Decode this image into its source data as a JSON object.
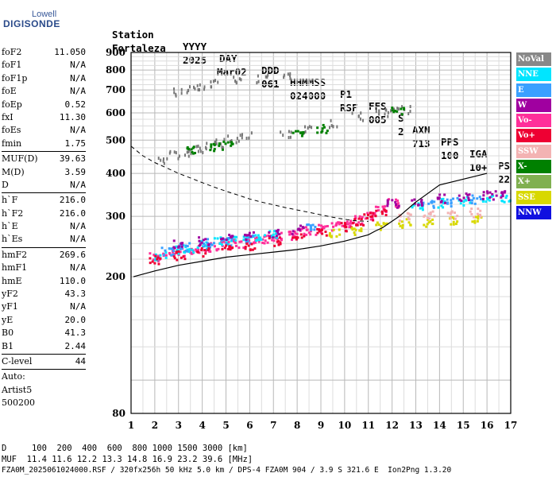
{
  "logo": {
    "line1": "Lowell",
    "line2": "DIGISONDE"
  },
  "header": {
    "labels": [
      "Station",
      "YYYY",
      "DAY",
      "DDD",
      "HHMMSS",
      "P1",
      "FFS",
      "S",
      "AXN",
      "PPS",
      "IGA",
      "PS"
    ],
    "values": [
      "Fortaleza",
      "2025",
      "Mar02",
      "061",
      "024000",
      "RSF",
      "005",
      "2",
      "713",
      "100",
      "10+",
      "22"
    ]
  },
  "params": {
    "group1": [
      {
        "k": "foF2",
        "v": "11.050"
      },
      {
        "k": "foF1",
        "v": "N/A"
      },
      {
        "k": "foF1p",
        "v": "N/A"
      },
      {
        "k": "foE",
        "v": "N/A"
      },
      {
        "k": "foEp",
        "v": "0.52"
      },
      {
        "k": "fxI",
        "v": "11.30"
      },
      {
        "k": "foEs",
        "v": "N/A"
      },
      {
        "k": "fmin",
        "v": "1.75"
      }
    ],
    "group2": [
      {
        "k": "MUF(D)",
        "v": "39.63"
      },
      {
        "k": "M(D)",
        "v": "3.59"
      },
      {
        "k": "D",
        "v": "N/A"
      }
    ],
    "group3": [
      {
        "k": "h`F",
        "v": "216.0"
      },
      {
        "k": "h`F2",
        "v": "216.0"
      },
      {
        "k": "h`E",
        "v": "N/A"
      },
      {
        "k": "h`Es",
        "v": "N/A"
      }
    ],
    "group4": [
      {
        "k": "hmF2",
        "v": "269.6"
      },
      {
        "k": "hmF1",
        "v": "N/A"
      },
      {
        "k": "hmE",
        "v": "110.0"
      },
      {
        "k": "yF2",
        "v": "43.3"
      },
      {
        "k": "yF1",
        "v": "N/A"
      },
      {
        "k": "yE",
        "v": "20.0"
      },
      {
        "k": "B0",
        "v": "41.3"
      },
      {
        "k": "B1",
        "v": "2.44"
      }
    ],
    "clevel": {
      "k": "C-level",
      "v": "44"
    },
    "auto": [
      "Auto:",
      "Artist5",
      "500200"
    ]
  },
  "legend": [
    {
      "label": "NoVal",
      "bg": "#888888",
      "fg": "#ffffff"
    },
    {
      "label": "NNE",
      "bg": "#00e5ff",
      "fg": "#ffffff"
    },
    {
      "label": "E",
      "bg": "#3aa0ff",
      "fg": "#ffffff"
    },
    {
      "label": "W",
      "bg": "#a000a0",
      "fg": "#ffffff"
    },
    {
      "label": "Vo-",
      "bg": "#ff2f9a",
      "fg": "#ffffff"
    },
    {
      "label": "Vo+",
      "bg": "#ee0033",
      "fg": "#ffffff"
    },
    {
      "label": "SSW",
      "bg": "#f3b3b3",
      "fg": "#ffffff"
    },
    {
      "label": "X-",
      "bg": "#008000",
      "fg": "#ffffff"
    },
    {
      "label": "X+",
      "bg": "#80b050",
      "fg": "#ffffff"
    },
    {
      "label": "SSE",
      "bg": "#d8d800",
      "fg": "#ffffff"
    },
    {
      "label": "NNW",
      "bg": "#1010e0",
      "fg": "#ffffff"
    }
  ],
  "chart_data": {
    "type": "scatter",
    "title": "",
    "xlabel": "",
    "ylabel": "",
    "xlim": [
      1,
      17
    ],
    "ylim": [
      80,
      900
    ],
    "yscale": "log",
    "xticks": [
      1,
      2,
      3,
      4,
      5,
      6,
      7,
      8,
      9,
      10,
      11,
      12,
      13,
      14,
      15,
      16,
      17
    ],
    "yticks": [
      80,
      200,
      300,
      400,
      500,
      600,
      700,
      800,
      900
    ],
    "grid": true,
    "series": [
      {
        "name": "Vo-",
        "points": [
          [
            2.0,
            230
          ],
          [
            2.5,
            235
          ],
          [
            3.0,
            238
          ],
          [
            3.5,
            240
          ],
          [
            4.0,
            243
          ],
          [
            4.5,
            246
          ],
          [
            5.0,
            248
          ],
          [
            5.5,
            252
          ],
          [
            6.0,
            255
          ],
          [
            6.5,
            258
          ],
          [
            7.0,
            262
          ],
          [
            7.5,
            266
          ],
          [
            8.0,
            270
          ],
          [
            8.5,
            274
          ],
          [
            9.0,
            278
          ],
          [
            9.5,
            282
          ],
          [
            10.0,
            288
          ],
          [
            10.5,
            295
          ],
          [
            11.0,
            305
          ],
          [
            11.5,
            320
          ],
          [
            12.0,
            330
          ]
        ]
      },
      {
        "name": "NNE",
        "points": [
          [
            2.2,
            232
          ],
          [
            2.8,
            240
          ],
          [
            3.4,
            244
          ],
          [
            4.0,
            250
          ],
          [
            4.6,
            255
          ],
          [
            5.2,
            258
          ],
          [
            5.8,
            262
          ],
          [
            6.4,
            264
          ],
          [
            7.0,
            268
          ],
          [
            13.0,
            325
          ],
          [
            14.0,
            330
          ],
          [
            15.0,
            335
          ],
          [
            16.0,
            338
          ],
          [
            16.8,
            340
          ]
        ]
      },
      {
        "name": "E",
        "points": [
          [
            2.5,
            240
          ],
          [
            3.2,
            245
          ],
          [
            4.2,
            252
          ],
          [
            5.0,
            256
          ],
          [
            6.0,
            260
          ],
          [
            8.5,
            278
          ],
          [
            13.5,
            330
          ],
          [
            14.5,
            333
          ],
          [
            15.5,
            338
          ]
        ]
      },
      {
        "name": "W",
        "points": [
          [
            3.0,
            250
          ],
          [
            4.0,
            256
          ],
          [
            5.0,
            262
          ],
          [
            6.0,
            266
          ],
          [
            7.0,
            270
          ],
          [
            8.0,
            276
          ],
          [
            12.0,
            330
          ],
          [
            13.0,
            335
          ],
          [
            14.0,
            340
          ],
          [
            15.0,
            345
          ],
          [
            16.0,
            348
          ],
          [
            16.5,
            350
          ]
        ]
      },
      {
        "name": "Vo+",
        "points": [
          [
            2.0,
            225
          ],
          [
            3.0,
            232
          ],
          [
            4.0,
            238
          ],
          [
            5.0,
            242
          ],
          [
            6.0,
            248
          ],
          [
            7.0,
            255
          ],
          [
            8.0,
            262
          ],
          [
            9.0,
            272
          ],
          [
            10.0,
            282
          ],
          [
            10.5,
            290
          ],
          [
            11.0,
            300
          ],
          [
            11.5,
            310
          ]
        ]
      },
      {
        "name": "NoVal",
        "points": [
          [
            2.3,
            445
          ],
          [
            2.8,
            455
          ],
          [
            3.3,
            465
          ],
          [
            3.8,
            475
          ],
          [
            4.3,
            485
          ],
          [
            4.8,
            495
          ],
          [
            5.3,
            505
          ],
          [
            5.8,
            515
          ],
          [
            7.5,
            530
          ],
          [
            8.5,
            540
          ],
          [
            9.5,
            560
          ],
          [
            10.5,
            590
          ],
          [
            11.5,
            605
          ],
          [
            12.0,
            610
          ],
          [
            12.5,
            615
          ],
          [
            3.0,
            700
          ],
          [
            3.5,
            715
          ],
          [
            4.0,
            725
          ],
          [
            4.5,
            735
          ],
          [
            5.5,
            755
          ],
          [
            6.5,
            760
          ],
          [
            7.5,
            780
          ]
        ]
      },
      {
        "name": "SSE",
        "points": [
          [
            9.5,
            270
          ],
          [
            10.5,
            275
          ],
          [
            11.5,
            282
          ],
          [
            12.5,
            288
          ],
          [
            13.5,
            290
          ],
          [
            14.5,
            292
          ],
          [
            15.5,
            295
          ]
        ]
      },
      {
        "name": "X-",
        "points": [
          [
            3.5,
            470
          ],
          [
            4.5,
            480
          ],
          [
            5.0,
            485
          ],
          [
            8.0,
            530
          ],
          [
            9.0,
            545
          ],
          [
            12.2,
            612
          ]
        ]
      },
      {
        "name": "SSW",
        "points": [
          [
            12.5,
            300
          ],
          [
            13.5,
            305
          ],
          [
            14.5,
            305
          ],
          [
            15.5,
            310
          ]
        ]
      }
    ],
    "trace": [
      [
        1.1,
        200
      ],
      [
        2,
        208
      ],
      [
        3,
        216
      ],
      [
        4,
        222
      ],
      [
        5,
        228
      ],
      [
        6,
        232
      ],
      [
        7,
        236
      ],
      [
        8,
        240
      ],
      [
        9,
        246
      ],
      [
        10,
        254
      ],
      [
        11,
        265
      ],
      [
        11.3,
        272
      ],
      [
        11.6,
        278
      ],
      [
        12.3,
        300
      ],
      [
        13,
        330
      ],
      [
        14,
        370
      ],
      [
        16,
        400
      ]
    ],
    "dashed_curve": [
      [
        1,
        480
      ],
      [
        1.5,
        450
      ],
      [
        2,
        430
      ],
      [
        2.5,
        415
      ],
      [
        3,
        400
      ],
      [
        3.5,
        388
      ],
      [
        4,
        376
      ],
      [
        4.5,
        365
      ],
      [
        5,
        355
      ],
      [
        5.5,
        346
      ],
      [
        6,
        337
      ],
      [
        6.5,
        330
      ],
      [
        7,
        324
      ],
      [
        7.5,
        318
      ],
      [
        8,
        313
      ],
      [
        8.5,
        308
      ],
      [
        9,
        303
      ],
      [
        9.5,
        298
      ],
      [
        10,
        294
      ],
      [
        10.5,
        291
      ],
      [
        11,
        290
      ]
    ]
  },
  "footer": {
    "d_label": "D",
    "d_values": "100  200  400  600  800 1000 1500 3000 [km]",
    "muf_label": "MUF",
    "muf_values": "11.4 11.6 12.2 13.3 14.8 16.9 23.2 39.6 [MHz]",
    "info": "FZA0M_2025061024000.RSF / 320fx256h 50 kHz 5.0 km / DPS-4 FZA0M 904 / 3.9 S 321.6 E  Ion2Png 1.3.20"
  }
}
